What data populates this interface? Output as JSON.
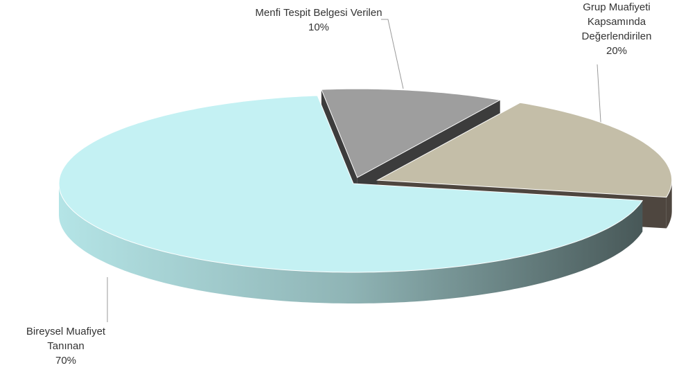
{
  "chart_data": {
    "type": "pie3d",
    "categories": [
      "Menfi Tespit Belgesi Verilen",
      "Grup Muafiyeti Kapsamında Değerlendirilen",
      "Bireysel Muafiyet Tanınan"
    ],
    "values": [
      10,
      20,
      70
    ],
    "value_labels": [
      "10%",
      "20%",
      "70%"
    ],
    "colors": [
      "#9e9e9e",
      "#c4bea8",
      "#c4f1f3"
    ],
    "side_colors": [
      "#3c3c3c",
      "#4e463f",
      "#4f6060"
    ]
  }
}
